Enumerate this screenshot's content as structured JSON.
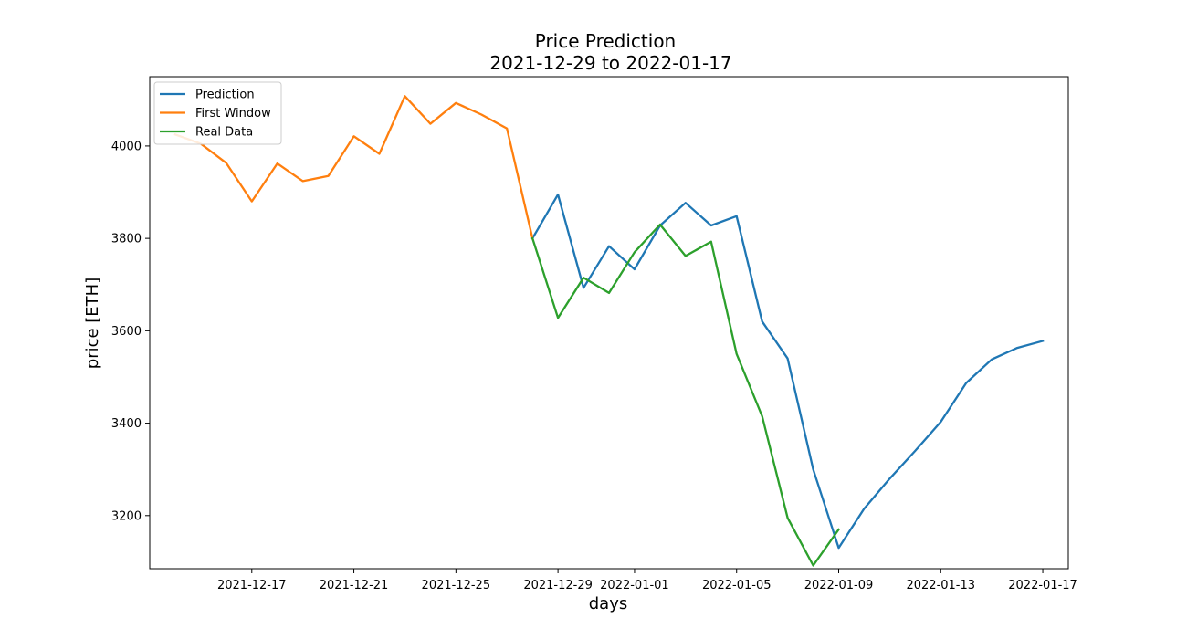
{
  "chart_data": {
    "type": "line",
    "title": "Price Prediction",
    "subtitle": "2021-12-29 to 2022-01-17",
    "xlabel": "days",
    "ylabel": "price [ETH]",
    "x_ticks": [
      "2021-12-17",
      "2021-12-21",
      "2021-12-25",
      "2021-12-29",
      "2022-01-01",
      "2022-01-05",
      "2022-01-09",
      "2022-01-13",
      "2022-01-17"
    ],
    "y_ticks": [
      3200,
      3400,
      3600,
      3800,
      4000
    ],
    "xlim": [
      "2021-12-13",
      "2022-01-18"
    ],
    "ylim": [
      3085,
      4150
    ],
    "grid": false,
    "legend_position": "upper-left",
    "series": [
      {
        "name": "Prediction",
        "color": "#1f77b4",
        "x": [
          "2021-12-28",
          "2021-12-29",
          "2021-12-30",
          "2021-12-31",
          "2022-01-01",
          "2022-01-02",
          "2022-01-03",
          "2022-01-04",
          "2022-01-05",
          "2022-01-06",
          "2022-01-07",
          "2022-01-08",
          "2022-01-09",
          "2022-01-10",
          "2022-01-11",
          "2022-01-12",
          "2022-01-13",
          "2022-01-14",
          "2022-01-15",
          "2022-01-16",
          "2022-01-17"
        ],
        "y": [
          3800,
          3895,
          3693,
          3783,
          3733,
          3828,
          3877,
          3828,
          3848,
          3620,
          3540,
          3300,
          3130,
          3215,
          3280,
          3340,
          3403,
          3487,
          3538,
          3563,
          3578
        ]
      },
      {
        "name": "First Window",
        "color": "#ff7f0e",
        "x": [
          "2021-12-14",
          "2021-12-15",
          "2021-12-16",
          "2021-12-17",
          "2021-12-18",
          "2021-12-19",
          "2021-12-20",
          "2021-12-21",
          "2021-12-22",
          "2021-12-23",
          "2021-12-24",
          "2021-12-25",
          "2021-12-26",
          "2021-12-27",
          "2021-12-28"
        ],
        "y": [
          4025,
          4005,
          3963,
          3880,
          3962,
          3924,
          3935,
          4021,
          3983,
          4108,
          4048,
          4093,
          4068,
          4038,
          3800
        ]
      },
      {
        "name": "Real Data",
        "color": "#2ca02c",
        "x": [
          "2021-12-28",
          "2021-12-29",
          "2021-12-30",
          "2021-12-31",
          "2022-01-01",
          "2022-01-02",
          "2022-01-03",
          "2022-01-04",
          "2022-01-05",
          "2022-01-06",
          "2022-01-07",
          "2022-01-08",
          "2022-01-09"
        ],
        "y": [
          3800,
          3628,
          3715,
          3682,
          3770,
          3830,
          3762,
          3793,
          3550,
          3415,
          3195,
          3092,
          3170
        ]
      }
    ]
  }
}
